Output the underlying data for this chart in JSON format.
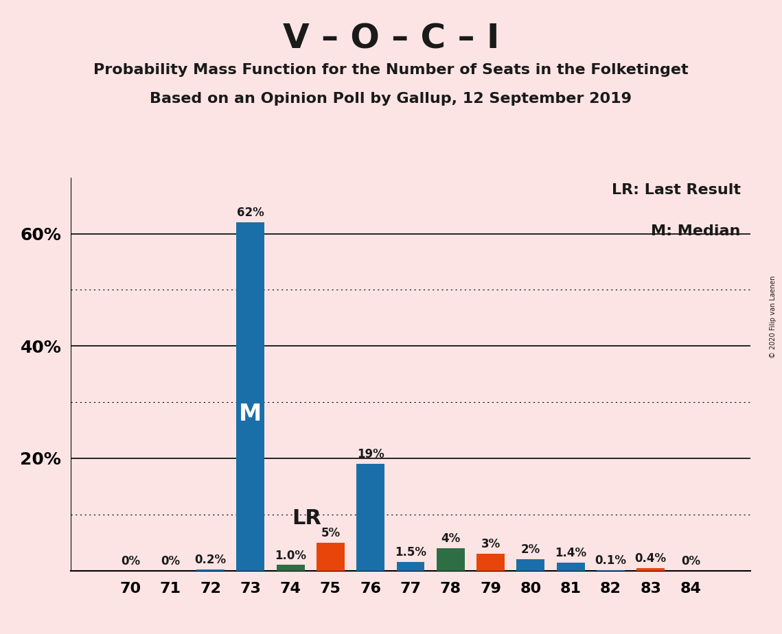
{
  "title_main": "V – O – C – I",
  "title_sub1": "Probability Mass Function for the Number of Seats in the Folketinget",
  "title_sub2": "Based on an Opinion Poll by Gallup, 12 September 2019",
  "copyright": "© 2020 Filip van Laenen",
  "seats": [
    70,
    71,
    72,
    73,
    74,
    75,
    76,
    77,
    78,
    79,
    80,
    81,
    82,
    83,
    84
  ],
  "values": [
    0.0,
    0.0,
    0.2,
    62.0,
    1.0,
    5.0,
    19.0,
    1.5,
    4.0,
    3.0,
    2.0,
    1.4,
    0.1,
    0.4,
    0.0
  ],
  "labels": [
    "0%",
    "0%",
    "0.2%",
    "62%",
    "1.0%",
    "5%",
    "19%",
    "1.5%",
    "4%",
    "3%",
    "2%",
    "1.4%",
    "0.1%",
    "0.4%",
    "0%"
  ],
  "bar_colors": [
    "#1a6fa8",
    "#1a6fa8",
    "#1a6fa8",
    "#1a6fa8",
    "#2d6e44",
    "#e8450a",
    "#1a6fa8",
    "#1a6fa8",
    "#2d6e44",
    "#e8450a",
    "#1a6fa8",
    "#1a6fa8",
    "#1a6fa8",
    "#e8450a",
    "#1a6fa8"
  ],
  "median_seat": 73,
  "lr_seat": 75,
  "ylim": [
    0,
    70
  ],
  "solid_lines": [
    60,
    40,
    20
  ],
  "dotted_lines": [
    50,
    30,
    10
  ],
  "background_color": "#fce4e4",
  "bar_width": 0.7,
  "legend_lr": "LR: Last Result",
  "legend_m": "M: Median",
  "title_main_fontsize": 36,
  "title_sub_fontsize": 16,
  "label_fontsize": 12,
  "tick_fontsize": 16,
  "ytick_fontsize": 18,
  "legend_fontsize": 16,
  "m_fontsize": 24,
  "lr_fontsize": 22
}
